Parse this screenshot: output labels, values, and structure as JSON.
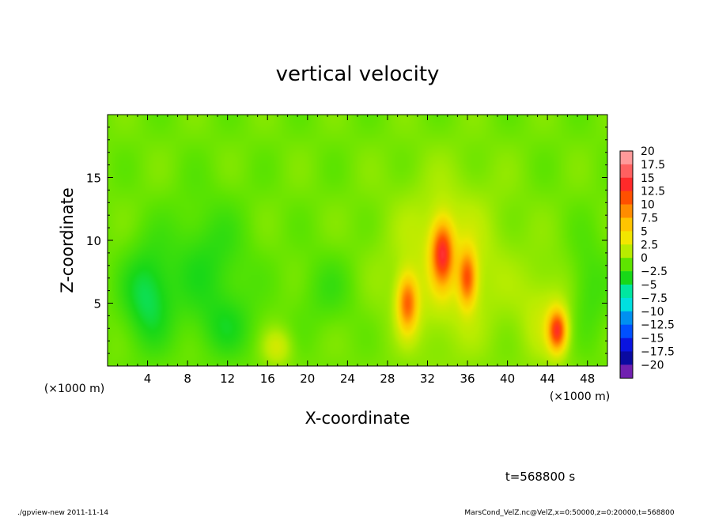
{
  "chart_data": {
    "type": "heatmap",
    "title": "vertical velocity",
    "xlabel": "X-coordinate",
    "ylabel": "Z-coordinate",
    "x_unit_left": "(×1000 m)",
    "x_unit_right": "(×1000 m)",
    "xlim": [
      0,
      50
    ],
    "ylim": [
      0,
      20
    ],
    "x_ticks": [
      {
        "value": 4,
        "label": "4"
      },
      {
        "value": 8,
        "label": "8"
      },
      {
        "value": 12,
        "label": "12"
      },
      {
        "value": 16,
        "label": "16"
      },
      {
        "value": 20,
        "label": "20"
      },
      {
        "value": 24,
        "label": "24"
      },
      {
        "value": 28,
        "label": "28"
      },
      {
        "value": 32,
        "label": "32"
      },
      {
        "value": 36,
        "label": "36"
      },
      {
        "value": 40,
        "label": "40"
      },
      {
        "value": 44,
        "label": "44"
      },
      {
        "value": 48,
        "label": "48"
      }
    ],
    "y_ticks": [
      {
        "value": 5,
        "label": "5"
      },
      {
        "value": 10,
        "label": "10"
      },
      {
        "value": 15,
        "label": "15"
      }
    ],
    "colorbar": {
      "labels": [
        "20",
        "17.5",
        "15",
        "12.5",
        "10",
        "7.5",
        "5",
        "2.5",
        "0",
        "−2.5",
        "−5",
        "−7.5",
        "−10",
        "−12.5",
        "−15",
        "−17.5",
        "−20"
      ],
      "colors": [
        "#ff9a9a",
        "#ff6060",
        "#ff2a2a",
        "#ff5000",
        "#ff8c00",
        "#ffc400",
        "#f2e600",
        "#b8ec00",
        "#5ee400",
        "#18d818",
        "#00e7a0",
        "#00e0e0",
        "#0090f0",
        "#0050ff",
        "#0a14e0",
        "#0a0aa0",
        "#7020b0"
      ]
    },
    "field": {
      "background_value": 0.5,
      "features": [
        {
          "x": 4,
          "z": 5.5,
          "sx": 2.5,
          "sz": 4,
          "value": -4
        },
        {
          "x": 10,
          "z": 8,
          "sx": 4,
          "sz": 5,
          "value": -2.5
        },
        {
          "x": 12,
          "z": 3,
          "sx": 3,
          "sz": 2.5,
          "value": -2
        },
        {
          "x": 22,
          "z": 6,
          "sx": 3,
          "sz": 3,
          "value": -1.5
        },
        {
          "x": 17,
          "z": 1.5,
          "sx": 1.5,
          "sz": 1.5,
          "value": 3
        },
        {
          "x": 34,
          "z": 8,
          "sx": 6,
          "sz": 7,
          "value": 3
        },
        {
          "x": 30,
          "z": 5,
          "sx": 1,
          "sz": 2.2,
          "value": 10
        },
        {
          "x": 33.5,
          "z": 9,
          "sx": 1.1,
          "sz": 2.5,
          "value": 12
        },
        {
          "x": 36,
          "z": 7,
          "sx": 0.9,
          "sz": 2.2,
          "value": 10
        },
        {
          "x": 45,
          "z": 2.8,
          "sx": 0.9,
          "sz": 1.6,
          "value": 12
        },
        {
          "x": 44,
          "z": 4,
          "sx": 3,
          "sz": 4,
          "value": 2.5
        },
        {
          "x": 48,
          "z": 6,
          "sx": 2,
          "sz": 4,
          "value": -2
        }
      ]
    }
  },
  "time_label": "t=568800 s",
  "footer_left": "./gpview-new  2011-11-14",
  "footer_right": "MarsCond_VelZ.nc@VelZ,x=0:50000,z=0:20000,t=568800"
}
